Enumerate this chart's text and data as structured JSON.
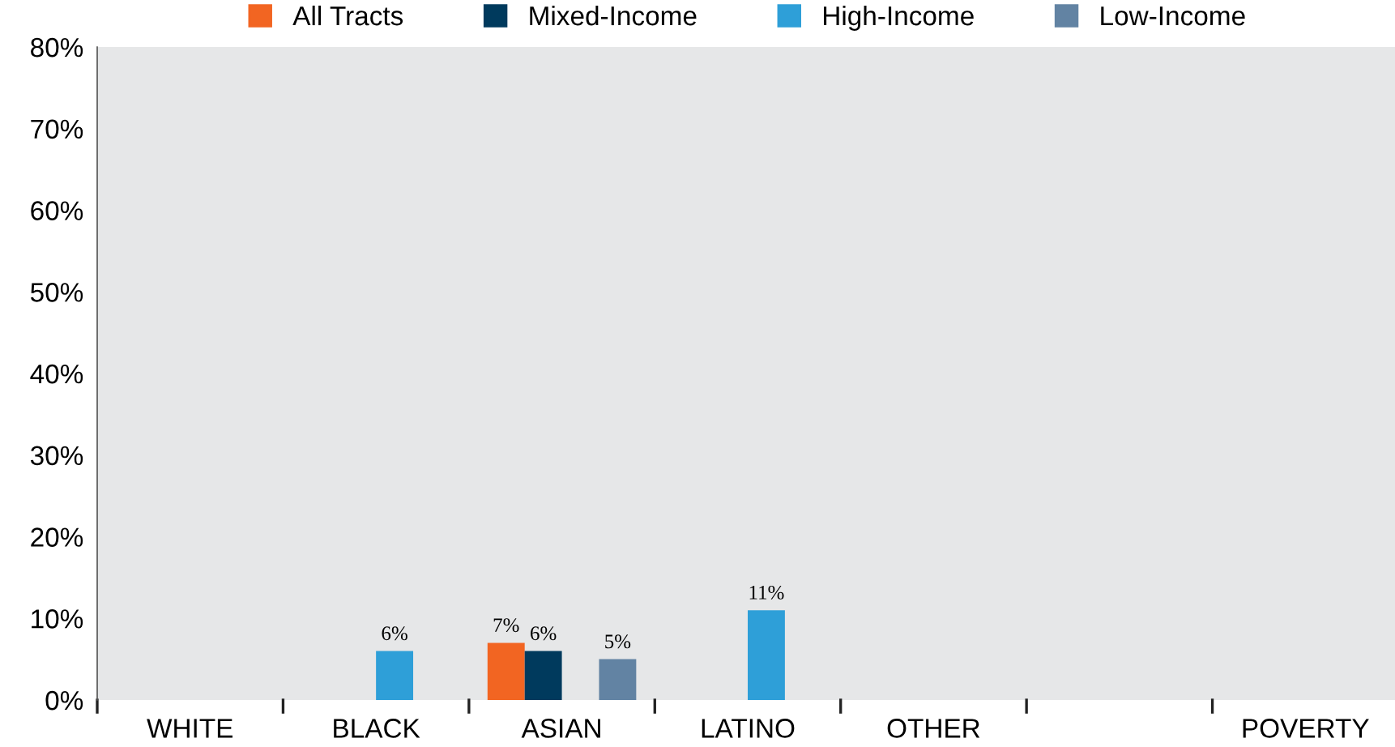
{
  "chart_data": {
    "type": "bar",
    "categories": [
      "WHITE",
      "BLACK",
      "ASIAN",
      "LATINO",
      "OTHER",
      null,
      "POVERTY"
    ],
    "series": [
      {
        "name": "All Tracts",
        "color": "#f26522",
        "values": [
          null,
          null,
          7,
          null,
          null,
          null,
          null
        ],
        "value_labels": [
          null,
          null,
          "7%",
          null,
          null,
          null,
          null
        ]
      },
      {
        "name": "Mixed-Income",
        "color": "#003a5d",
        "values": [
          null,
          null,
          6,
          null,
          null,
          null,
          null
        ],
        "value_labels": [
          null,
          null,
          "6%",
          null,
          null,
          null,
          null
        ]
      },
      {
        "name": "High-Income",
        "color": "#2e9fd8",
        "values": [
          null,
          6,
          null,
          11,
          null,
          null,
          null
        ],
        "value_labels": [
          null,
          "6%",
          null,
          "11%",
          null,
          null,
          null
        ]
      },
      {
        "name": "Low-Income",
        "color": "#6283a3",
        "values": [
          null,
          null,
          5,
          null,
          null,
          null,
          null
        ],
        "value_labels": [
          null,
          null,
          "5%",
          null,
          null,
          null,
          null
        ]
      }
    ],
    "ylim": [
      0,
      80
    ],
    "yticks": [
      {
        "value": 0,
        "label": "0%"
      },
      {
        "value": 10,
        "label": "10%"
      },
      {
        "value": 20,
        "label": "20%"
      },
      {
        "value": 30,
        "label": "30%"
      },
      {
        "value": 40,
        "label": "40%"
      },
      {
        "value": 50,
        "label": "50%"
      },
      {
        "value": 60,
        "label": "60%"
      },
      {
        "value": 70,
        "label": "70%"
      },
      {
        "value": 80,
        "label": "80%"
      }
    ],
    "grid": false,
    "legend": "top"
  }
}
